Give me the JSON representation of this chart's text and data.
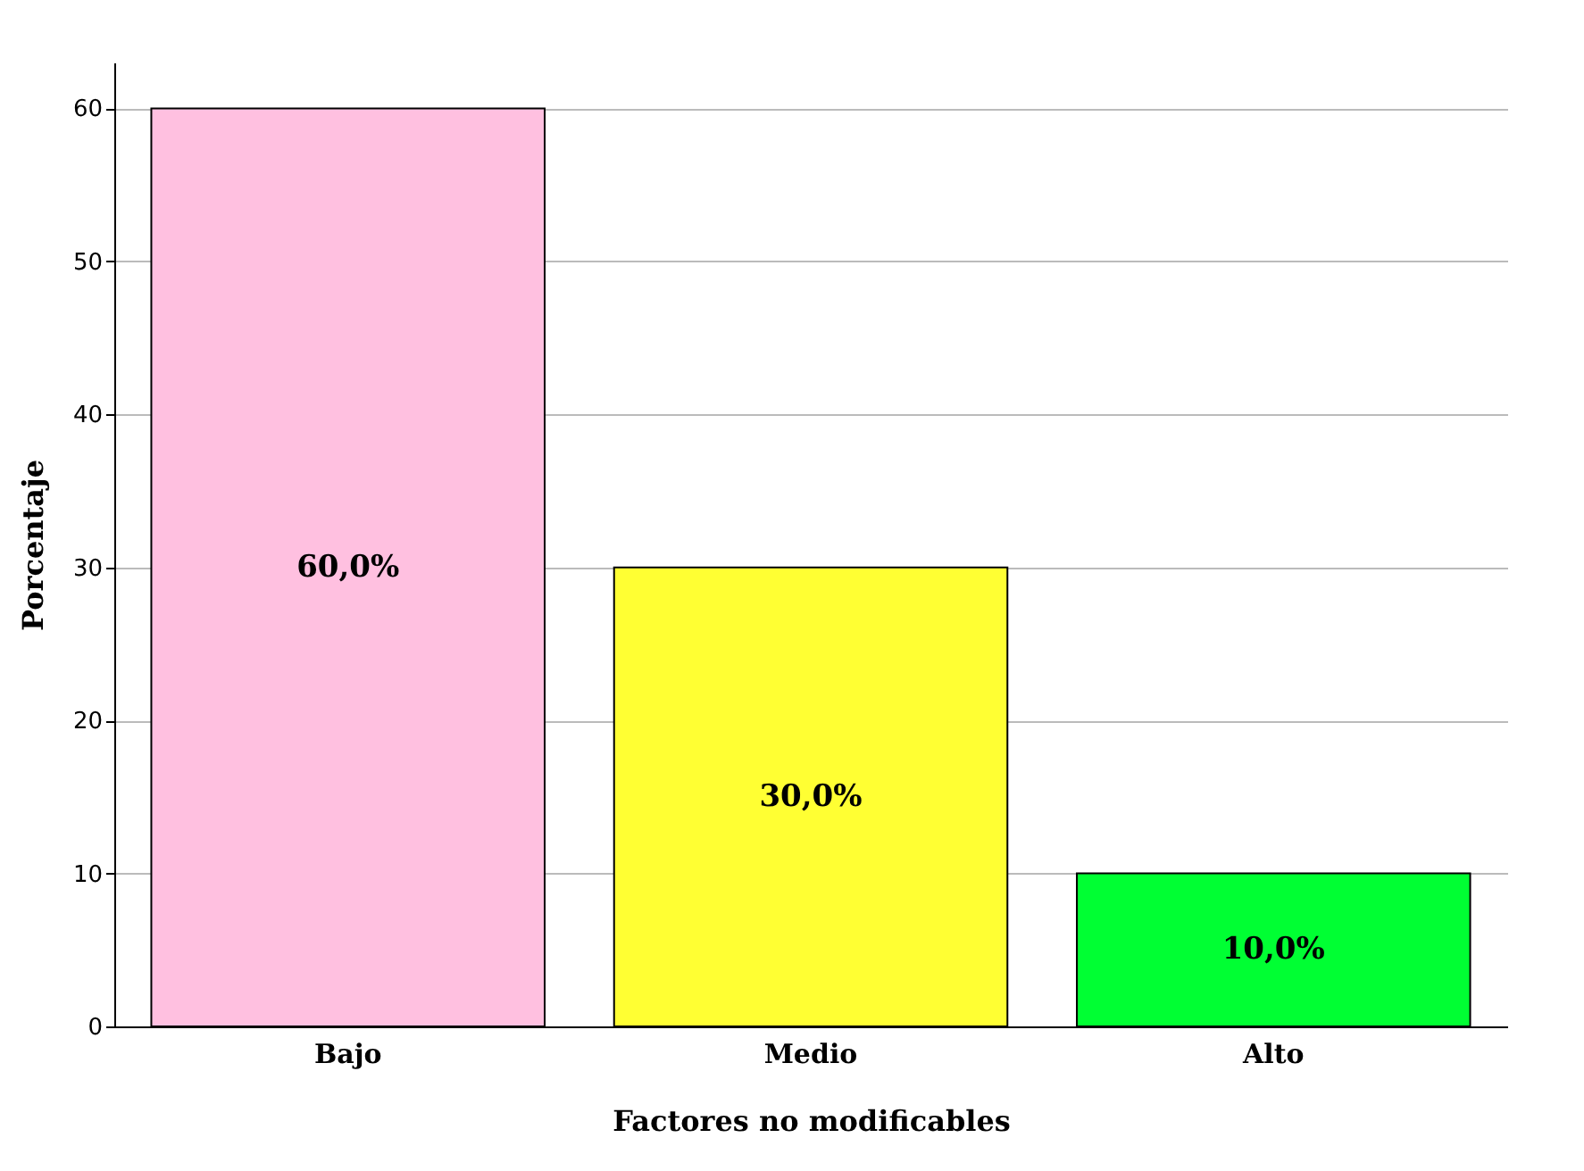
{
  "chart_data": {
    "type": "bar",
    "xlabel": "Factores no modificables",
    "ylabel": "Porcentaje",
    "categories": [
      "Bajo",
      "Medio",
      "Alto"
    ],
    "values": [
      60,
      30,
      10
    ],
    "colors": [
      "#ffc0e0",
      "#ffff33",
      "#00ff33"
    ],
    "value_labels": [
      "60,0%",
      "30,0%",
      "10,0%"
    ],
    "ylim": [
      0,
      63
    ],
    "yticks": [
      0,
      10,
      20,
      30,
      40,
      50,
      60
    ],
    "grid": "y"
  }
}
